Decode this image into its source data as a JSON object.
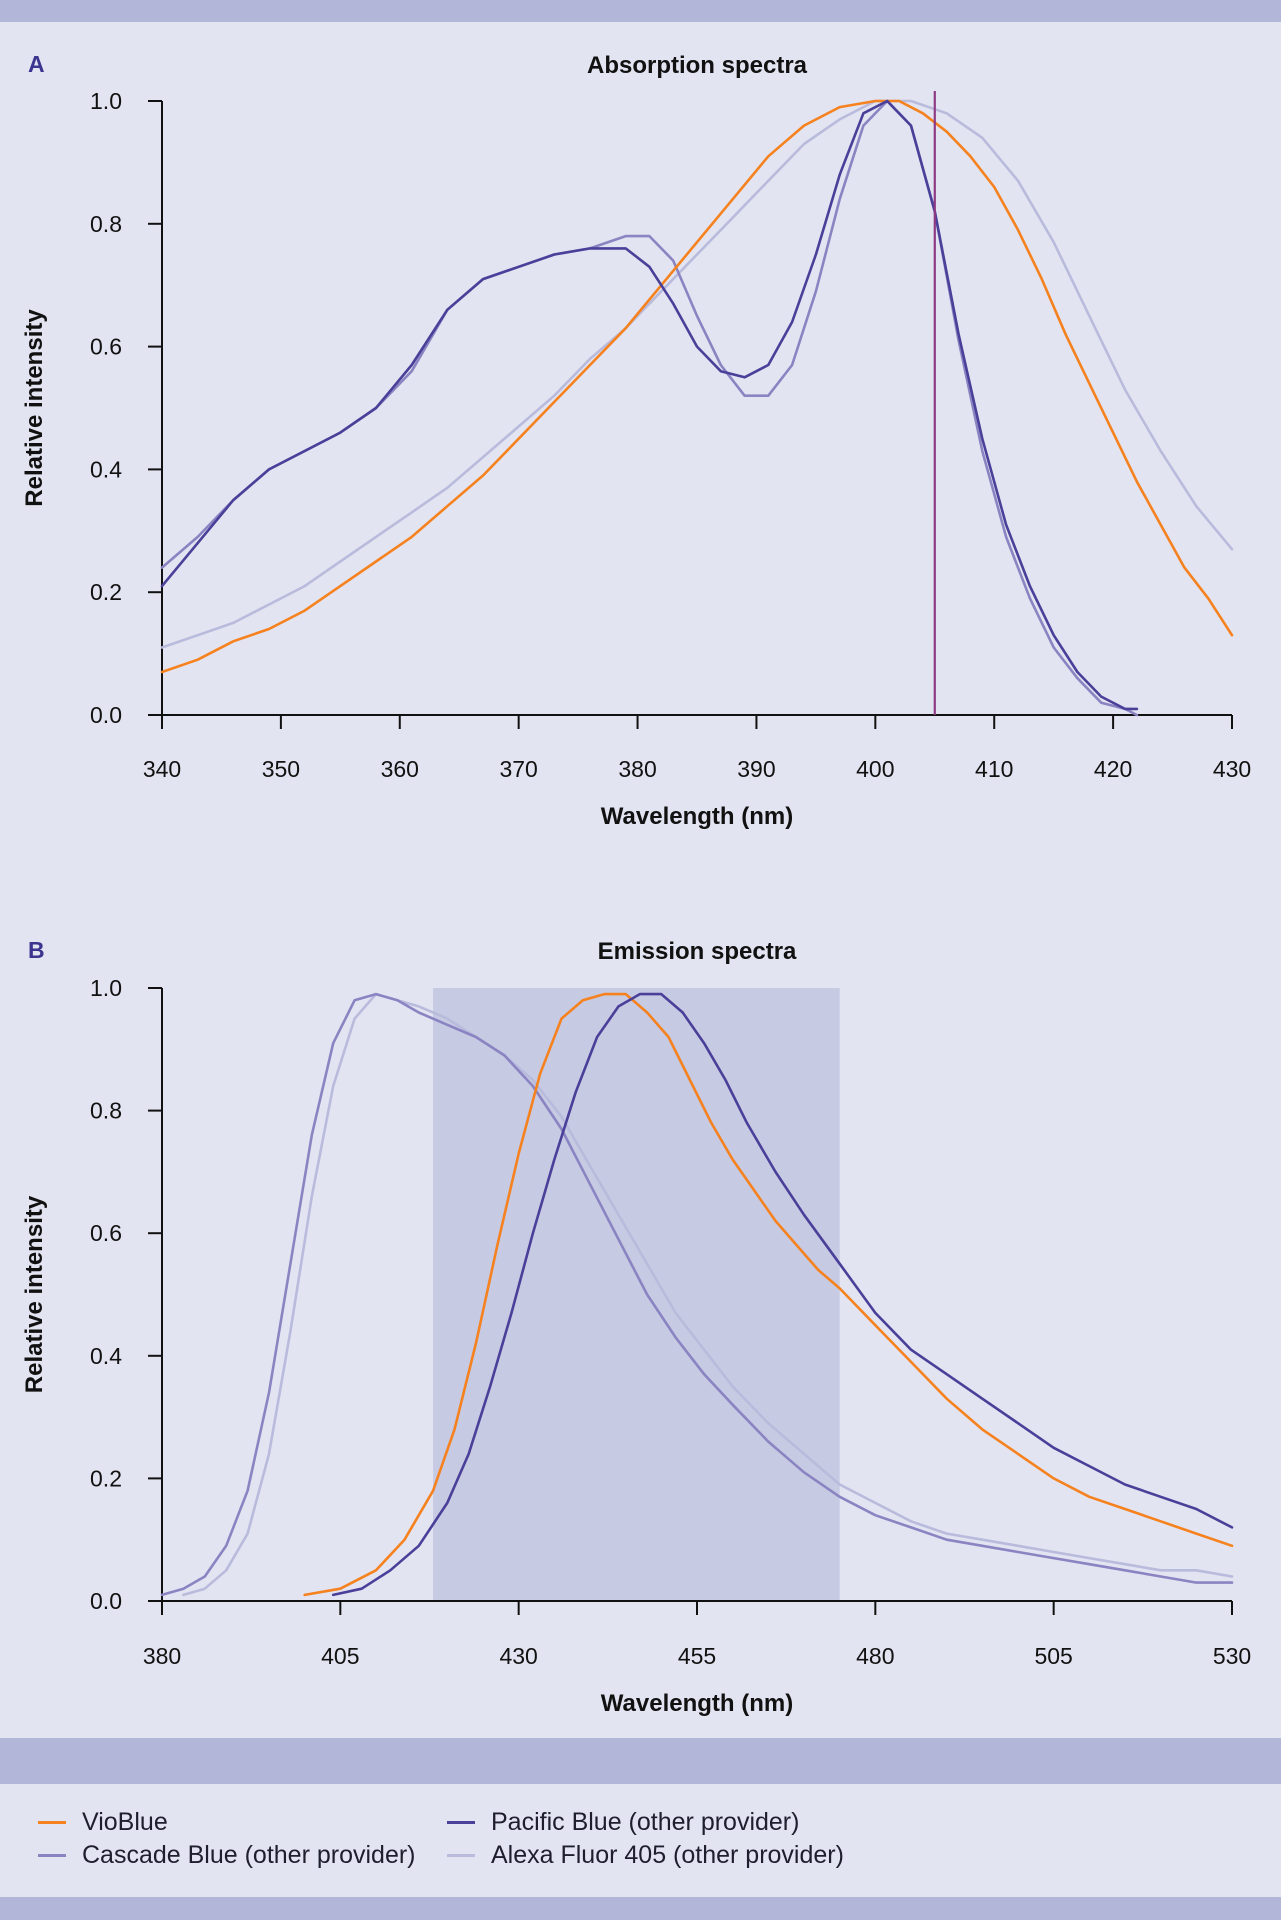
{
  "colors": {
    "background": "#e3e4f1",
    "band": "#b2b7da",
    "vioblue": "#f5821f",
    "pacific": "#4a3f99",
    "cascade": "#8a84c2",
    "alexa": "#b9bbdc",
    "laser_line": "#8e3a84",
    "filter_band": "#c7cae3",
    "panel_letter": "#3c3590"
  },
  "legend": [
    {
      "label": "VioBlue",
      "color": "#f5821f"
    },
    {
      "label": "Pacific Blue (other provider)",
      "color": "#4a3f99"
    },
    {
      "label": "Cascade Blue (other provider)",
      "color": "#8a84c2"
    },
    {
      "label": "Alexa Fluor 405 (other provider)",
      "color": "#b9bbdc"
    }
  ],
  "chart_data": [
    {
      "panel": "A",
      "type": "line",
      "title": "Absorption spectra",
      "xlabel": "Wavelength (nm)",
      "ylabel": "Relative intensity",
      "xlim": [
        340,
        430
      ],
      "ylim": [
        0,
        1.0
      ],
      "xticks": [
        340,
        350,
        360,
        370,
        380,
        390,
        400,
        410,
        420,
        430
      ],
      "xtick_labels": [
        "340",
        "350",
        "360",
        "370",
        "380",
        "390",
        "400",
        "410",
        "420",
        "430"
      ],
      "yticks": [
        0,
        0.2,
        0.4,
        0.6,
        0.8,
        1.0
      ],
      "ytick_labels": [
        "0.0",
        "0.2",
        "0.4",
        "0.6",
        "0.8",
        "1.0"
      ],
      "vline": {
        "x": 405
      },
      "series": [
        {
          "name": "VioBlue",
          "x": [
            340,
            343,
            346,
            349,
            352,
            355,
            358,
            361,
            364,
            367,
            370,
            373,
            376,
            379,
            382,
            385,
            388,
            391,
            394,
            397,
            400,
            402,
            404,
            406,
            408,
            410,
            412,
            414,
            416,
            418,
            420,
            422,
            424,
            426,
            428,
            430
          ],
          "y": [
            0.07,
            0.09,
            0.12,
            0.14,
            0.17,
            0.21,
            0.25,
            0.29,
            0.34,
            0.39,
            0.45,
            0.51,
            0.57,
            0.63,
            0.7,
            0.77,
            0.84,
            0.91,
            0.96,
            0.99,
            1.0,
            1.0,
            0.98,
            0.95,
            0.91,
            0.86,
            0.79,
            0.71,
            0.62,
            0.54,
            0.46,
            0.38,
            0.31,
            0.24,
            0.19,
            0.13
          ]
        },
        {
          "name": "Pacific Blue (other provider)",
          "x": [
            340,
            343,
            346,
            349,
            352,
            355,
            358,
            361,
            364,
            367,
            370,
            373,
            376,
            379,
            381,
            383,
            385,
            387,
            389,
            391,
            393,
            395,
            397,
            399,
            401,
            403,
            405,
            407,
            409,
            411,
            413,
            415,
            417,
            419,
            421,
            422
          ],
          "y": [
            0.21,
            0.28,
            0.35,
            0.4,
            0.43,
            0.46,
            0.5,
            0.57,
            0.66,
            0.71,
            0.73,
            0.75,
            0.76,
            0.76,
            0.73,
            0.67,
            0.6,
            0.56,
            0.55,
            0.57,
            0.64,
            0.75,
            0.88,
            0.98,
            1.0,
            0.96,
            0.82,
            0.62,
            0.45,
            0.31,
            0.21,
            0.13,
            0.07,
            0.03,
            0.01,
            0.01
          ]
        },
        {
          "name": "Cascade Blue (other provider)",
          "x": [
            340,
            343,
            346,
            349,
            352,
            355,
            358,
            361,
            364,
            367,
            370,
            373,
            376,
            379,
            381,
            383,
            385,
            387,
            389,
            391,
            393,
            395,
            397,
            399,
            401,
            403,
            405,
            407,
            409,
            411,
            413,
            415,
            417,
            419,
            421,
            422
          ],
          "y": [
            0.24,
            0.29,
            0.35,
            0.4,
            0.43,
            0.46,
            0.5,
            0.56,
            0.66,
            0.71,
            0.73,
            0.75,
            0.76,
            0.78,
            0.78,
            0.74,
            0.65,
            0.57,
            0.52,
            0.52,
            0.57,
            0.69,
            0.84,
            0.96,
            1.0,
            0.96,
            0.82,
            0.61,
            0.43,
            0.29,
            0.19,
            0.11,
            0.06,
            0.02,
            0.01,
            0.0
          ]
        },
        {
          "name": "Alexa Fluor 405 (other provider)",
          "x": [
            340,
            343,
            346,
            349,
            352,
            355,
            358,
            361,
            364,
            367,
            370,
            373,
            376,
            379,
            382,
            385,
            388,
            391,
            394,
            397,
            400,
            403,
            406,
            409,
            412,
            415,
            418,
            421,
            424,
            427,
            430
          ],
          "y": [
            0.11,
            0.13,
            0.15,
            0.18,
            0.21,
            0.25,
            0.29,
            0.33,
            0.37,
            0.42,
            0.47,
            0.52,
            0.58,
            0.63,
            0.69,
            0.75,
            0.81,
            0.87,
            0.93,
            0.97,
            1.0,
            1.0,
            0.98,
            0.94,
            0.87,
            0.77,
            0.65,
            0.53,
            0.43,
            0.34,
            0.27
          ]
        }
      ]
    },
    {
      "panel": "B",
      "type": "line",
      "title": "Emission spectra",
      "xlabel": "Wavelength (nm)",
      "ylabel": "Relative intensity",
      "xlim": [
        380,
        530
      ],
      "ylim": [
        0,
        1.0
      ],
      "xticks": [
        380,
        405,
        430,
        455,
        480,
        505,
        530
      ],
      "xtick_labels": [
        "380",
        "405",
        "430",
        "455",
        "480",
        "505",
        "530"
      ],
      "yticks": [
        0,
        0.2,
        0.4,
        0.6,
        0.8,
        1.0
      ],
      "ytick_labels": [
        "0.0",
        "0.2",
        "0.4",
        "0.6",
        "0.8",
        "1.0"
      ],
      "band": {
        "x0": 418,
        "x1": 475
      },
      "series": [
        {
          "name": "VioBlue",
          "x": [
            400,
            405,
            410,
            414,
            418,
            421,
            424,
            427,
            430,
            433,
            436,
            439,
            442,
            445,
            448,
            451,
            454,
            457,
            460,
            463,
            466,
            469,
            472,
            475,
            480,
            485,
            490,
            495,
            500,
            505,
            510,
            515,
            520,
            525,
            530
          ],
          "y": [
            0.01,
            0.02,
            0.05,
            0.1,
            0.18,
            0.28,
            0.42,
            0.58,
            0.73,
            0.86,
            0.95,
            0.98,
            0.99,
            0.99,
            0.96,
            0.92,
            0.85,
            0.78,
            0.72,
            0.67,
            0.62,
            0.58,
            0.54,
            0.51,
            0.45,
            0.39,
            0.33,
            0.28,
            0.24,
            0.2,
            0.17,
            0.15,
            0.13,
            0.11,
            0.09
          ]
        },
        {
          "name": "Pacific Blue (other provider)",
          "x": [
            404,
            408,
            412,
            416,
            420,
            423,
            426,
            429,
            432,
            435,
            438,
            441,
            444,
            447,
            450,
            453,
            456,
            459,
            462,
            466,
            470,
            475,
            480,
            485,
            490,
            495,
            500,
            505,
            510,
            515,
            520,
            525,
            530
          ],
          "y": [
            0.01,
            0.02,
            0.05,
            0.09,
            0.16,
            0.24,
            0.35,
            0.47,
            0.6,
            0.72,
            0.83,
            0.92,
            0.97,
            0.99,
            0.99,
            0.96,
            0.91,
            0.85,
            0.78,
            0.7,
            0.63,
            0.55,
            0.47,
            0.41,
            0.37,
            0.33,
            0.29,
            0.25,
            0.22,
            0.19,
            0.17,
            0.15,
            0.12
          ]
        },
        {
          "name": "Cascade Blue (other provider)",
          "x": [
            380,
            383,
            386,
            389,
            392,
            395,
            398,
            401,
            404,
            407,
            410,
            413,
            416,
            420,
            424,
            428,
            432,
            436,
            440,
            444,
            448,
            452,
            456,
            460,
            465,
            470,
            475,
            480,
            485,
            490,
            495,
            500,
            505,
            510,
            515,
            520,
            525,
            530
          ],
          "y": [
            0.01,
            0.02,
            0.04,
            0.09,
            0.18,
            0.34,
            0.55,
            0.76,
            0.91,
            0.98,
            0.99,
            0.98,
            0.96,
            0.94,
            0.92,
            0.89,
            0.84,
            0.77,
            0.68,
            0.59,
            0.5,
            0.43,
            0.37,
            0.32,
            0.26,
            0.21,
            0.17,
            0.14,
            0.12,
            0.1,
            0.09,
            0.08,
            0.07,
            0.06,
            0.05,
            0.04,
            0.03,
            0.03
          ]
        },
        {
          "name": "Alexa Fluor 405 (other provider)",
          "x": [
            383,
            386,
            389,
            392,
            395,
            398,
            401,
            404,
            407,
            410,
            413,
            416,
            420,
            424,
            428,
            432,
            436,
            440,
            444,
            448,
            452,
            456,
            460,
            465,
            470,
            475,
            480,
            485,
            490,
            495,
            500,
            505,
            510,
            515,
            520,
            525,
            530
          ],
          "y": [
            0.01,
            0.02,
            0.05,
            0.11,
            0.24,
            0.44,
            0.66,
            0.84,
            0.95,
            0.99,
            0.98,
            0.97,
            0.95,
            0.92,
            0.89,
            0.85,
            0.79,
            0.71,
            0.63,
            0.55,
            0.47,
            0.41,
            0.35,
            0.29,
            0.24,
            0.19,
            0.16,
            0.13,
            0.11,
            0.1,
            0.09,
            0.08,
            0.07,
            0.06,
            0.05,
            0.05,
            0.04
          ]
        }
      ]
    }
  ]
}
